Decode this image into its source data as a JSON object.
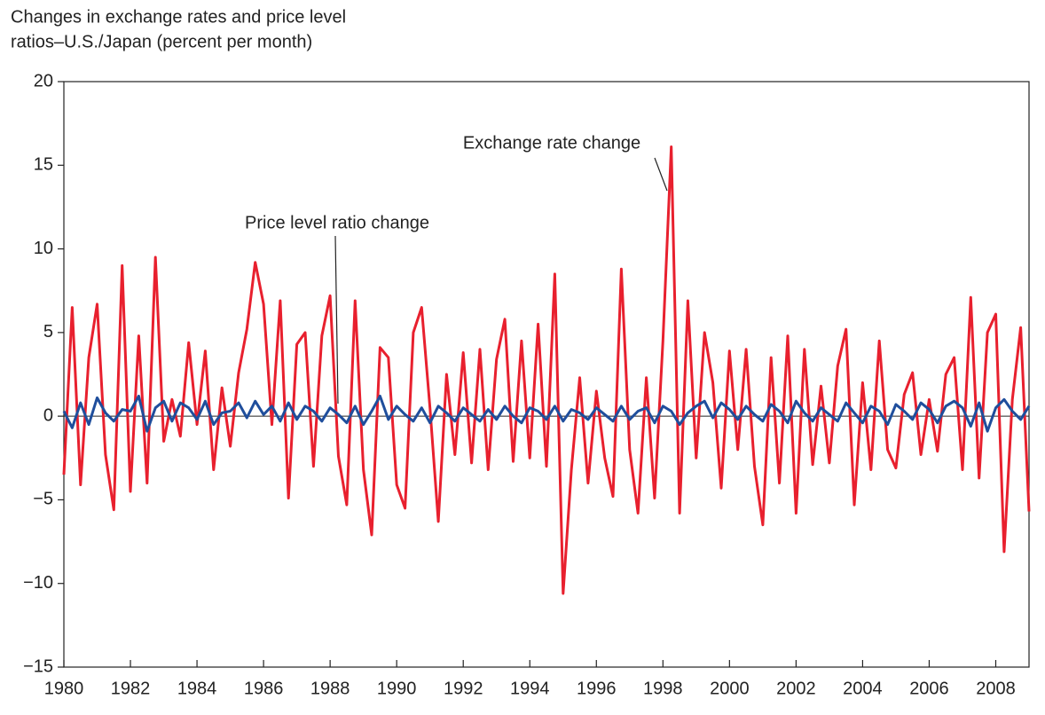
{
  "chart_data": {
    "type": "line",
    "title": [
      "Changes in exchange rates and price level",
      "ratios–U.S./Japan (percent per month)"
    ],
    "annotations": [
      "Exchange rate change",
      "Price level ratio change"
    ],
    "x": [
      1980,
      1980.25,
      1980.5,
      1980.75,
      1981,
      1981.25,
      1981.5,
      1981.75,
      1982,
      1982.25,
      1982.5,
      1982.75,
      1983,
      1983.25,
      1983.5,
      1983.75,
      1984,
      1984.25,
      1984.5,
      1984.75,
      1985,
      1985.25,
      1985.5,
      1985.75,
      1986,
      1986.25,
      1986.5,
      1986.75,
      1987,
      1987.25,
      1987.5,
      1987.75,
      1988,
      1988.25,
      1988.5,
      1988.75,
      1989,
      1989.25,
      1989.5,
      1989.75,
      1990,
      1990.25,
      1990.5,
      1990.75,
      1991,
      1991.25,
      1991.5,
      1991.75,
      1992,
      1992.25,
      1992.5,
      1992.75,
      1993,
      1993.25,
      1993.5,
      1993.75,
      1994,
      1994.25,
      1994.5,
      1994.75,
      1995,
      1995.25,
      1995.5,
      1995.75,
      1996,
      1996.25,
      1996.5,
      1996.75,
      1997,
      1997.25,
      1997.5,
      1997.75,
      1998,
      1998.25,
      1998.5,
      1998.75,
      1999,
      1999.25,
      1999.5,
      1999.75,
      2000,
      2000.25,
      2000.5,
      2000.75,
      2001,
      2001.25,
      2001.5,
      2001.75,
      2002,
      2002.25,
      2002.5,
      2002.75,
      2003,
      2003.25,
      2003.5,
      2003.75,
      2004,
      2004.25,
      2004.5,
      2004.75,
      2005,
      2005.25,
      2005.5,
      2005.75,
      2006,
      2006.25,
      2006.5,
      2006.75,
      2007,
      2007.25,
      2007.5,
      2007.75,
      2008,
      2008.25,
      2008.5,
      2008.75,
      2009
    ],
    "series": [
      {
        "name": "Exchange rate change",
        "color": "#e8202e",
        "values": [
          -3.5,
          6.5,
          -4.1,
          3.5,
          6.7,
          -2.3,
          -5.6,
          9.0,
          -4.5,
          4.8,
          -4.0,
          9.5,
          -1.5,
          1.0,
          -1.2,
          4.4,
          -0.5,
          3.9,
          -3.2,
          1.7,
          -1.8,
          2.6,
          5.2,
          9.2,
          6.7,
          -0.5,
          6.9,
          -4.9,
          4.3,
          5.0,
          -3.0,
          4.8,
          7.2,
          -2.4,
          -5.3,
          6.9,
          -3.2,
          -7.1,
          4.1,
          3.5,
          -4.1,
          -5.5,
          5.0,
          6.5,
          0.5,
          -6.3,
          2.5,
          -2.3,
          3.8,
          -2.8,
          4.0,
          -3.2,
          3.4,
          5.8,
          -2.7,
          4.5,
          -2.5,
          5.5,
          -3.0,
          8.5,
          -10.6,
          -3.2,
          2.3,
          -4.0,
          1.5,
          -2.5,
          -4.8,
          8.8,
          -2.0,
          -5.8,
          2.3,
          -4.9,
          4.5,
          16.1,
          -5.8,
          6.9,
          -2.5,
          5.0,
          2.0,
          -4.3,
          3.9,
          -2.0,
          4.0,
          -3.0,
          -6.5,
          3.5,
          -4.0,
          4.8,
          -5.8,
          4.0,
          -2.9,
          1.8,
          -2.8,
          3.0,
          5.2,
          -5.3,
          2.0,
          -3.2,
          4.5,
          -2.0,
          -3.1,
          1.3,
          2.6,
          -2.3,
          1.0,
          -2.1,
          2.5,
          3.5,
          -3.2,
          7.1,
          -3.7,
          5.0,
          6.1,
          -8.1,
          1.0,
          5.3,
          -5.7
        ]
      },
      {
        "name": "Price level ratio change",
        "color": "#1f4e9c",
        "values": [
          0.3,
          -0.7,
          0.8,
          -0.5,
          1.1,
          0.2,
          -0.3,
          0.4,
          0.3,
          1.2,
          -0.9,
          0.5,
          0.9,
          -0.3,
          0.8,
          0.5,
          -0.2,
          0.9,
          -0.5,
          0.2,
          0.3,
          0.8,
          -0.1,
          0.9,
          0.1,
          0.6,
          -0.3,
          0.8,
          -0.2,
          0.6,
          0.3,
          -0.3,
          0.5,
          0.1,
          -0.4,
          0.6,
          -0.5,
          0.3,
          1.2,
          -0.2,
          0.6,
          0.1,
          -0.3,
          0.5,
          -0.4,
          0.6,
          0.2,
          -0.3,
          0.5,
          0.1,
          -0.3,
          0.4,
          -0.2,
          0.6,
          0.0,
          -0.4,
          0.5,
          0.3,
          -0.2,
          0.6,
          -0.3,
          0.4,
          0.2,
          -0.2,
          0.5,
          0.1,
          -0.3,
          0.6,
          -0.2,
          0.3,
          0.5,
          -0.4,
          0.6,
          0.3,
          -0.5,
          0.2,
          0.6,
          0.9,
          -0.1,
          0.8,
          0.4,
          -0.2,
          0.6,
          0.1,
          -0.3,
          0.7,
          0.3,
          -0.4,
          0.9,
          0.2,
          -0.3,
          0.5,
          0.1,
          -0.3,
          0.8,
          0.2,
          -0.4,
          0.6,
          0.3,
          -0.5,
          0.7,
          0.3,
          -0.2,
          0.8,
          0.4,
          -0.4,
          0.6,
          0.9,
          0.5,
          -0.6,
          0.8,
          -0.9,
          0.5,
          1.0,
          0.3,
          -0.2,
          0.6
        ]
      }
    ],
    "xlim": [
      1980,
      2009
    ],
    "xticks": [
      1980,
      1982,
      1984,
      1986,
      1988,
      1990,
      1992,
      1994,
      1996,
      1998,
      2000,
      2002,
      2004,
      2006,
      2008
    ],
    "ylim": [
      -15,
      20
    ],
    "yticks": [
      {
        "value": -15,
        "label": "−15"
      },
      {
        "value": -10,
        "label": "−10"
      },
      {
        "value": -5,
        "label": "−5"
      },
      0,
      5,
      10,
      15,
      20
    ]
  }
}
